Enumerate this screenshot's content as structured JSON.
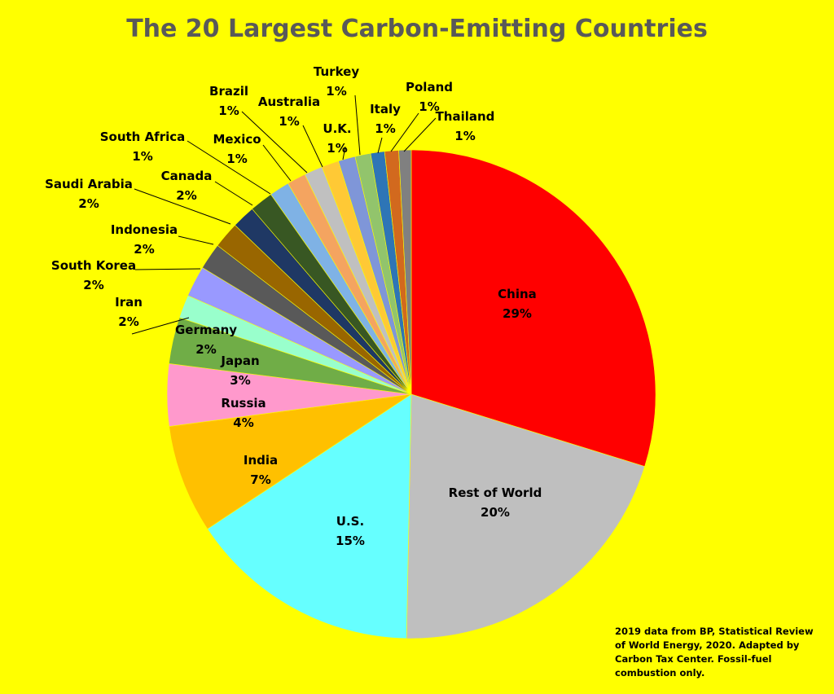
{
  "chart_data": {
    "type": "pie",
    "title": "The 20 Largest Carbon-Emitting Countries",
    "source_note": "2019 data from BP, Statistical Review of World Energy, 2020. Adapted by Carbon Tax Center. Fossil-fuel combustion only.",
    "slices": [
      {
        "label": "China",
        "value": 29,
        "pct_label": "29%",
        "color": "#FF0000"
      },
      {
        "label": "Rest of World",
        "value": 20,
        "pct_label": "20%",
        "color": "#BFBFBF"
      },
      {
        "label": "U.S.",
        "value": 15,
        "pct_label": "15%",
        "color": "#66FFFF"
      },
      {
        "label": "India",
        "value": 7,
        "pct_label": "7%",
        "color": "#FFC000"
      },
      {
        "label": "Russia",
        "value": 4,
        "pct_label": "4%",
        "color": "#FF99CC"
      },
      {
        "label": "Japan",
        "value": 3,
        "pct_label": "3%",
        "color": "#70AD47"
      },
      {
        "label": "Germany",
        "value": 1.5,
        "pct_label": "2%",
        "color": "#99FFCC"
      },
      {
        "label": "Iran",
        "value": 2,
        "pct_label": "2%",
        "color": "#9999FF"
      },
      {
        "label": "South Korea",
        "value": 1.7,
        "pct_label": "2%",
        "color": "#595959"
      },
      {
        "label": "Indonesia",
        "value": 1.7,
        "pct_label": "2%",
        "color": "#996600"
      },
      {
        "label": "Saudi Arabia",
        "value": 1.5,
        "pct_label": "2%",
        "color": "#1F3864"
      },
      {
        "label": "Canada",
        "value": 1.5,
        "pct_label": "2%",
        "color": "#385723"
      },
      {
        "label": "South Africa",
        "value": 1.3,
        "pct_label": "1%",
        "color": "#7FB2E5"
      },
      {
        "label": "Mexico",
        "value": 1.2,
        "pct_label": "1%",
        "color": "#F4A460"
      },
      {
        "label": "Brazil",
        "value": 1.2,
        "pct_label": "1%",
        "color": "#C0C0C0"
      },
      {
        "label": "Australia",
        "value": 1.1,
        "pct_label": "1%",
        "color": "#FFC935"
      },
      {
        "label": "U.K.",
        "value": 1.1,
        "pct_label": "1%",
        "color": "#7F96D8"
      },
      {
        "label": "Turkey",
        "value": 1.0,
        "pct_label": "1%",
        "color": "#92C46C"
      },
      {
        "label": "Italy",
        "value": 0.9,
        "pct_label": "1%",
        "color": "#2E75B6"
      },
      {
        "label": "Poland",
        "value": 0.9,
        "pct_label": "1%",
        "color": "#D2691E"
      },
      {
        "label": "Thailand",
        "value": 0.8,
        "pct_label": "1%",
        "color": "#808080"
      }
    ]
  }
}
